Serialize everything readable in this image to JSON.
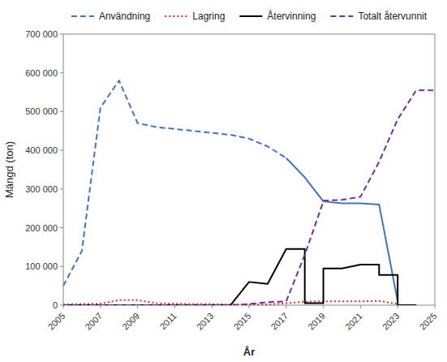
{
  "chart_data": {
    "type": "line",
    "xlabel": "År",
    "ylabel": "Mängd (ton)",
    "xlim": [
      2005,
      2025
    ],
    "ylim": [
      0,
      700000
    ],
    "xticks": [
      2005,
      2007,
      2009,
      2011,
      2013,
      2015,
      2017,
      2019,
      2021,
      2023,
      2025
    ],
    "yticks": [
      0,
      {
        "value": 100000,
        "label": "100 000"
      },
      {
        "value": 200000,
        "label": "200 000"
      },
      {
        "value": 300000,
        "label": "300 000"
      },
      {
        "value": 400000,
        "label": "400 000"
      },
      {
        "value": 500000,
        "label": "500 000"
      },
      {
        "value": 600000,
        "label": "600 000"
      },
      {
        "value": 700000,
        "label": "700 000"
      }
    ],
    "grid": false,
    "legend": "top",
    "series": [
      {
        "name": "Användning",
        "color": "#4472C4",
        "line_style": "dashed",
        "x": [
          2005,
          2006,
          2007,
          2008,
          2009,
          2010,
          2011,
          2012,
          2013,
          2014,
          2015,
          2016,
          2017
        ],
        "values": [
          50000,
          140000,
          510000,
          580000,
          470000,
          460000,
          455000,
          450000,
          445000,
          440000,
          430000,
          410000,
          380000
        ]
      },
      {
        "color": "#4472C4",
        "line_style": "solid",
        "x": [
          2017,
          2018,
          2019,
          2020,
          2021,
          2022,
          2023
        ],
        "values": [
          380000,
          330000,
          268000,
          263000,
          263000,
          260000,
          10000
        ]
      },
      {
        "name": "Lagring",
        "color": "#FF2222",
        "line_style": "dotted",
        "x": [
          2005,
          2006,
          2007,
          2008,
          2009,
          2010,
          2011,
          2012,
          2013,
          2014,
          2015,
          2016,
          2017,
          2018,
          2019,
          2020,
          2021,
          2022,
          2023
        ],
        "values": [
          2000,
          3000,
          4000,
          13000,
          13000,
          5000,
          4000,
          3000,
          3000,
          2000,
          2000,
          2000,
          5000,
          9000,
          10000,
          10000,
          10000,
          11000,
          3000
        ]
      },
      {
        "name": "Återvinning",
        "color": "#000000",
        "line_style": "solid",
        "x": [
          2005,
          2014,
          2015,
          2016,
          2017,
          2018,
          2018,
          2019,
          2019,
          2020,
          2021,
          2022,
          2022,
          2023,
          2023,
          2024
        ],
        "values": [
          0,
          0,
          60000,
          55000,
          145000,
          145000,
          5000,
          5000,
          95000,
          95000,
          105000,
          105000,
          78000,
          78000,
          0,
          0
        ]
      },
      {
        "name": "Totalt återvunnit",
        "color": "#7030A0",
        "line_style": "dashed",
        "x": [
          2005,
          2014,
          2015,
          2016,
          2017,
          2018,
          2019,
          2019,
          2020,
          2021,
          2022,
          2023,
          2024,
          2025
        ],
        "values": [
          0,
          0,
          3000,
          8000,
          10000,
          130000,
          268000,
          270000,
          272000,
          280000,
          370000,
          480000,
          555000,
          555000
        ]
      }
    ]
  }
}
